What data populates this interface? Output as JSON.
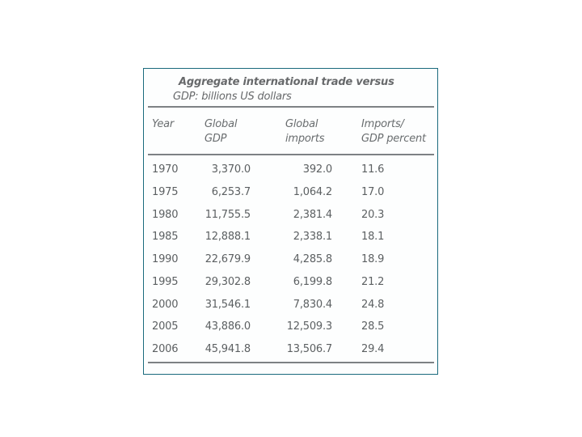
{
  "colors": {
    "card_border": "#1a6a7d",
    "rule": "#7d8184",
    "title_text": "#67696b",
    "data_text": "#5c6062",
    "background": "#ffffff"
  },
  "card": {
    "title_line1": "Aggregate international trade versus",
    "title_line2": "GDP: billions US dollars"
  },
  "table": {
    "columns": [
      {
        "label": "Year"
      },
      {
        "label": "Global\nGDP"
      },
      {
        "label": "Global\nimports"
      },
      {
        "label": "Imports/\nGDP percent"
      }
    ],
    "rows": [
      {
        "year": "1970",
        "gdp": "3,370.0",
        "imports": "392.0",
        "pct": "11.6"
      },
      {
        "year": "1975",
        "gdp": "6,253.7",
        "imports": "1,064.2",
        "pct": "17.0"
      },
      {
        "year": "1980",
        "gdp": "11,755.5",
        "imports": "2,381.4",
        "pct": "20.3"
      },
      {
        "year": "1985",
        "gdp": "12,888.1",
        "imports": "2,338.1",
        "pct": "18.1"
      },
      {
        "year": "1990",
        "gdp": "22,679.9",
        "imports": "4,285.8",
        "pct": "18.9"
      },
      {
        "year": "1995",
        "gdp": "29,302.8",
        "imports": "6,199.8",
        "pct": "21.2"
      },
      {
        "year": "2000",
        "gdp": "31,546.1",
        "imports": "7,830.4",
        "pct": "24.8"
      },
      {
        "year": "2005",
        "gdp": "43,886.0",
        "imports": "12,509.3",
        "pct": "28.5"
      },
      {
        "year": "2006",
        "gdp": "45,941.8",
        "imports": "13,506.7",
        "pct": "29.4"
      }
    ]
  },
  "chart_data": {
    "type": "table",
    "title": "Aggregate international trade versus GDP: billions US dollars",
    "columns": [
      "Year",
      "Global GDP",
      "Global imports",
      "Imports/GDP percent"
    ],
    "rows": [
      [
        1970,
        3370.0,
        392.0,
        11.6
      ],
      [
        1975,
        6253.7,
        1064.2,
        17.0
      ],
      [
        1980,
        11755.5,
        2381.4,
        20.3
      ],
      [
        1985,
        12888.1,
        2338.1,
        18.1
      ],
      [
        1990,
        22679.9,
        4285.8,
        18.9
      ],
      [
        1995,
        29302.8,
        6199.8,
        21.2
      ],
      [
        2000,
        31546.1,
        7830.4,
        24.8
      ],
      [
        2005,
        43886.0,
        12509.3,
        28.5
      ],
      [
        2006,
        45941.8,
        13506.7,
        29.4
      ]
    ],
    "series": [
      {
        "name": "Global GDP",
        "x": [
          1970,
          1975,
          1980,
          1985,
          1990,
          1995,
          2000,
          2005,
          2006
        ],
        "values": [
          3370.0,
          6253.7,
          11755.5,
          12888.1,
          22679.9,
          29302.8,
          31546.1,
          43886.0,
          45941.8
        ]
      },
      {
        "name": "Global imports",
        "x": [
          1970,
          1975,
          1980,
          1985,
          1990,
          1995,
          2000,
          2005,
          2006
        ],
        "values": [
          392.0,
          1064.2,
          2381.4,
          2338.1,
          4285.8,
          6199.8,
          7830.4,
          12509.3,
          13506.7
        ]
      },
      {
        "name": "Imports/GDP percent",
        "x": [
          1970,
          1975,
          1980,
          1985,
          1990,
          1995,
          2000,
          2005,
          2006
        ],
        "values": [
          11.6,
          17.0,
          20.3,
          18.1,
          18.9,
          21.2,
          24.8,
          28.5,
          29.4
        ]
      }
    ],
    "units": "billions US dollars"
  }
}
